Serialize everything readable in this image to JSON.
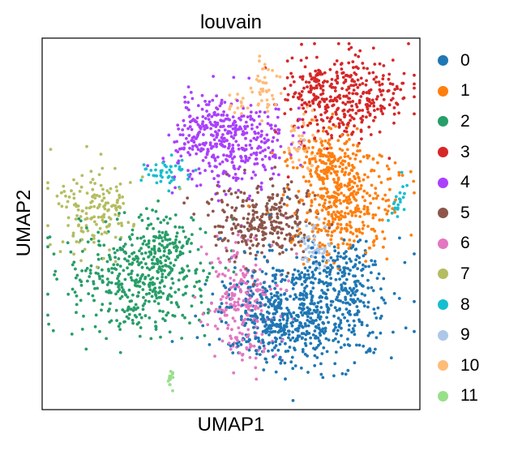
{
  "chart_data": {
    "type": "scatter",
    "title": "louvain",
    "xlabel": "UMAP1",
    "ylabel": "UMAP2",
    "xticks": [],
    "yticks": [],
    "grid": false,
    "legend_position": "right",
    "clusters": [
      {
        "name": "0",
        "color": "#1f77b4",
        "blobs": [
          [
            0.71,
            0.73,
            0.14,
            0.1,
            540
          ],
          [
            0.6,
            0.76,
            0.08,
            0.08,
            180
          ],
          [
            0.78,
            0.63,
            0.07,
            0.06,
            120
          ]
        ]
      },
      {
        "name": "1",
        "color": "#ff7f0e",
        "blobs": [
          [
            0.8,
            0.44,
            0.09,
            0.1,
            380
          ],
          [
            0.76,
            0.33,
            0.06,
            0.05,
            140
          ]
        ]
      },
      {
        "name": "2",
        "color": "#279e68",
        "blobs": [
          [
            0.25,
            0.65,
            0.12,
            0.1,
            440
          ],
          [
            0.33,
            0.56,
            0.05,
            0.06,
            90
          ]
        ]
      },
      {
        "name": "3",
        "color": "#d62728",
        "blobs": [
          [
            0.8,
            0.16,
            0.1,
            0.08,
            330
          ],
          [
            0.71,
            0.14,
            0.04,
            0.05,
            60
          ]
        ]
      },
      {
        "name": "4",
        "color": "#aa40fc",
        "blobs": [
          [
            0.5,
            0.29,
            0.1,
            0.08,
            370
          ],
          [
            0.43,
            0.22,
            0.05,
            0.05,
            70
          ]
        ]
      },
      {
        "name": "5",
        "color": "#8c564b",
        "blobs": [
          [
            0.59,
            0.49,
            0.1,
            0.07,
            290
          ]
        ]
      },
      {
        "name": "6",
        "color": "#e377c2",
        "blobs": [
          [
            0.53,
            0.71,
            0.06,
            0.1,
            240
          ]
        ]
      },
      {
        "name": "7",
        "color": "#b5bd61",
        "blobs": [
          [
            0.14,
            0.46,
            0.07,
            0.08,
            160
          ]
        ]
      },
      {
        "name": "8",
        "color": "#17becf",
        "blobs": [
          [
            0.33,
            0.36,
            0.04,
            0.025,
            45
          ],
          [
            0.94,
            0.44,
            0.015,
            0.05,
            22
          ]
        ]
      },
      {
        "name": "9",
        "color": "#aec7e8",
        "blobs": [
          [
            0.72,
            0.56,
            0.03,
            0.04,
            55
          ]
        ]
      },
      {
        "name": "10",
        "color": "#ffbb78",
        "blobs": [
          [
            0.59,
            0.13,
            0.022,
            0.05,
            40
          ],
          [
            0.52,
            0.17,
            0.015,
            0.02,
            15
          ],
          [
            0.69,
            0.27,
            0.03,
            0.05,
            40
          ]
        ]
      },
      {
        "name": "11",
        "color": "#98df8a",
        "blobs": [
          [
            0.34,
            0.92,
            0.008,
            0.022,
            14
          ]
        ]
      }
    ]
  }
}
